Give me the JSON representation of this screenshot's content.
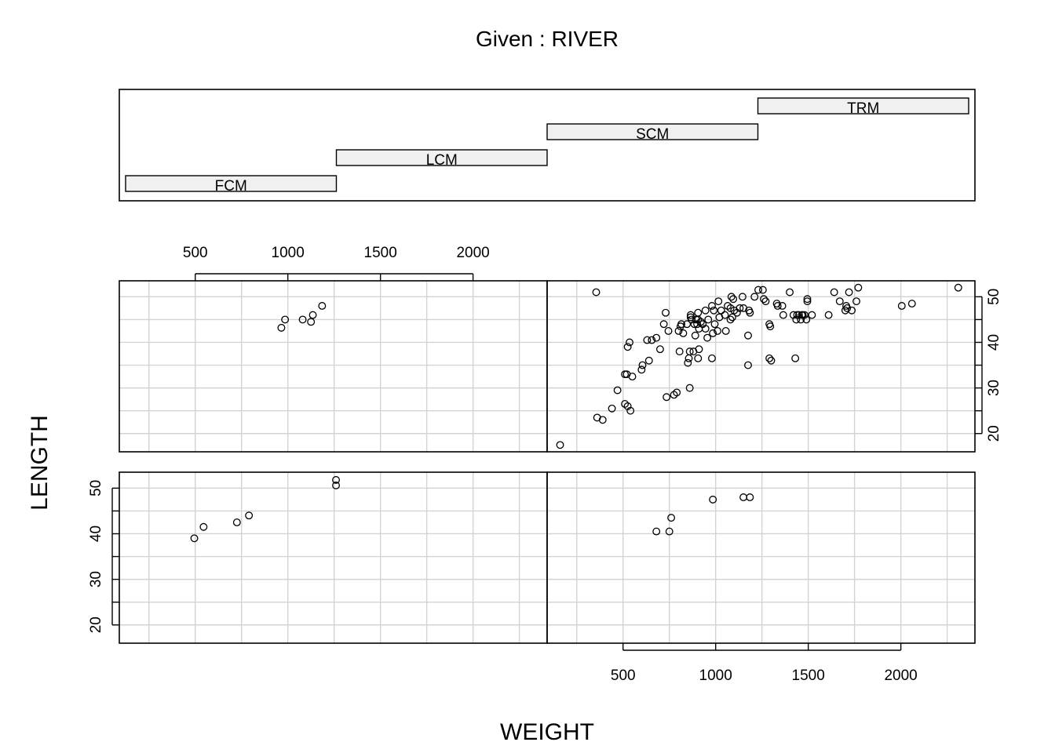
{
  "given_title": "Given : RIVER",
  "chart_data": {
    "type": "scatter",
    "title": "",
    "xlabel": "WEIGHT",
    "ylabel": "LENGTH",
    "xlim": [
      90,
      2400
    ],
    "ylim": [
      16,
      53.5
    ],
    "x_ticks": [
      500,
      1000,
      1500,
      2000
    ],
    "y_ticks": [
      20,
      30,
      40,
      50
    ],
    "grid": true,
    "given": {
      "variable": "RIVER",
      "levels": [
        "FCM",
        "LCM",
        "SCM",
        "TRM"
      ]
    },
    "panels": [
      {
        "level": "FCM",
        "points": [
          [
            495,
            39
          ],
          [
            545,
            41.5
          ],
          [
            725,
            42.5
          ],
          [
            790,
            44
          ],
          [
            1260,
            50.6
          ],
          [
            1260,
            51.8
          ]
        ]
      },
      {
        "level": "LCM",
        "points": [
          [
            680,
            40.5
          ],
          [
            750,
            40.5
          ],
          [
            760,
            43.5
          ],
          [
            985,
            47.5
          ],
          [
            1150,
            48
          ],
          [
            1185,
            48
          ]
        ]
      },
      {
        "level": "SCM",
        "points": [
          [
            965,
            43.2
          ],
          [
            985,
            45
          ],
          [
            1080,
            45
          ],
          [
            1125,
            44.5
          ],
          [
            1135,
            46
          ],
          [
            1185,
            48
          ]
        ]
      },
      {
        "level": "TRM",
        "points": [
          [
            160,
            17.5
          ],
          [
            355,
            51
          ],
          [
            360,
            23.5
          ],
          [
            390,
            23
          ],
          [
            440,
            25.5
          ],
          [
            470,
            29.5
          ],
          [
            510,
            26.5
          ],
          [
            510,
            33
          ],
          [
            520,
            33
          ],
          [
            525,
            26
          ],
          [
            525,
            39
          ],
          [
            535,
            40
          ],
          [
            540,
            25
          ],
          [
            550,
            32.5
          ],
          [
            600,
            34
          ],
          [
            605,
            35
          ],
          [
            630,
            40.5
          ],
          [
            640,
            36
          ],
          [
            655,
            40.5
          ],
          [
            680,
            41
          ],
          [
            700,
            38.5
          ],
          [
            720,
            44
          ],
          [
            730,
            46.5
          ],
          [
            735,
            28
          ],
          [
            745,
            42.5
          ],
          [
            775,
            28.5
          ],
          [
            790,
            29
          ],
          [
            800,
            42.5
          ],
          [
            805,
            38
          ],
          [
            810,
            43.5
          ],
          [
            815,
            44
          ],
          [
            825,
            42
          ],
          [
            845,
            44
          ],
          [
            850,
            35.5
          ],
          [
            855,
            36.5
          ],
          [
            860,
            30
          ],
          [
            860,
            38
          ],
          [
            865,
            45.5
          ],
          [
            865,
            46
          ],
          [
            870,
            45
          ],
          [
            880,
            38
          ],
          [
            885,
            44
          ],
          [
            890,
            41.5
          ],
          [
            895,
            45
          ],
          [
            900,
            44
          ],
          [
            905,
            45
          ],
          [
            905,
            46.5
          ],
          [
            905,
            36.5
          ],
          [
            910,
            38.5
          ],
          [
            910,
            43
          ],
          [
            920,
            44.5
          ],
          [
            930,
            44
          ],
          [
            945,
            43
          ],
          [
            945,
            47
          ],
          [
            955,
            41
          ],
          [
            960,
            45
          ],
          [
            980,
            36.5
          ],
          [
            980,
            48
          ],
          [
            985,
            42
          ],
          [
            990,
            47
          ],
          [
            995,
            44
          ],
          [
            1010,
            42.5
          ],
          [
            1015,
            49
          ],
          [
            1020,
            45.5
          ],
          [
            1030,
            47
          ],
          [
            1050,
            46
          ],
          [
            1055,
            42.5
          ],
          [
            1065,
            48
          ],
          [
            1080,
            45
          ],
          [
            1080,
            47.5
          ],
          [
            1085,
            50
          ],
          [
            1090,
            45.5
          ],
          [
            1095,
            49.5
          ],
          [
            1100,
            47
          ],
          [
            1115,
            46.5
          ],
          [
            1130,
            47.5
          ],
          [
            1145,
            50
          ],
          [
            1150,
            47.5
          ],
          [
            1175,
            35
          ],
          [
            1175,
            41.5
          ],
          [
            1180,
            47
          ],
          [
            1185,
            46.5
          ],
          [
            1210,
            50
          ],
          [
            1230,
            51.5
          ],
          [
            1255,
            51.5
          ],
          [
            1260,
            49.5
          ],
          [
            1270,
            49
          ],
          [
            1290,
            44
          ],
          [
            1290,
            36.5
          ],
          [
            1295,
            43.5
          ],
          [
            1300,
            36
          ],
          [
            1330,
            48.5
          ],
          [
            1335,
            48
          ],
          [
            1360,
            48
          ],
          [
            1365,
            46
          ],
          [
            1400,
            51
          ],
          [
            1420,
            46
          ],
          [
            1430,
            36.5
          ],
          [
            1435,
            45
          ],
          [
            1440,
            46
          ],
          [
            1450,
            46
          ],
          [
            1460,
            45
          ],
          [
            1465,
            46
          ],
          [
            1470,
            46
          ],
          [
            1480,
            46
          ],
          [
            1490,
            45
          ],
          [
            1495,
            49.5
          ],
          [
            1495,
            49
          ],
          [
            1520,
            46
          ],
          [
            1610,
            46
          ],
          [
            1640,
            51
          ],
          [
            1670,
            49
          ],
          [
            1700,
            47
          ],
          [
            1705,
            48
          ],
          [
            1710,
            47.5
          ],
          [
            1720,
            51
          ],
          [
            1735,
            47
          ],
          [
            1760,
            49
          ],
          [
            1770,
            52
          ],
          [
            2005,
            48
          ],
          [
            2060,
            48.5
          ],
          [
            2310,
            52
          ]
        ]
      }
    ]
  }
}
